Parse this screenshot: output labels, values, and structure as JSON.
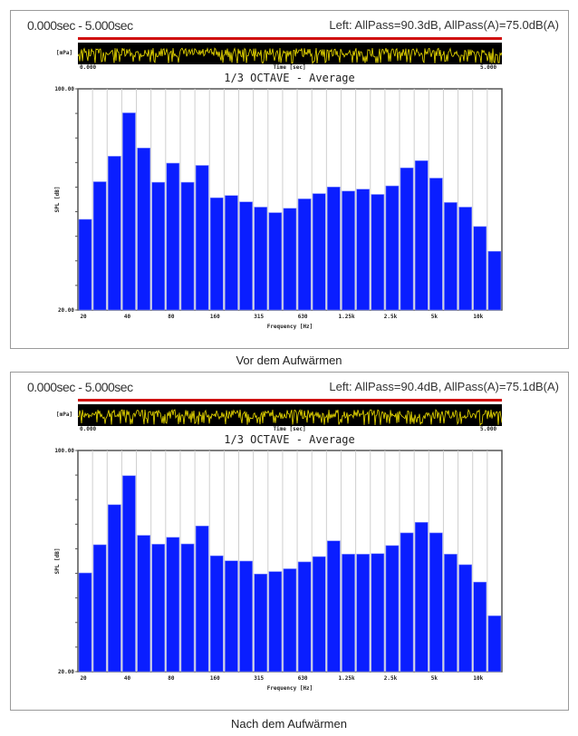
{
  "panels": [
    {
      "range": "0.000sec  -  5.000sec",
      "levels": "Left: AllPass=90.3dB, AllPass(A)=75.0dB(A)",
      "unit": "[mPa]",
      "time_start": "0.000",
      "time_end": "5.000",
      "time_label": "Time [sec]",
      "caption": "Vor dem Aufwärmen"
    },
    {
      "range": "0.000sec  -  5.000sec",
      "levels": "Left: AllPass=90.4dB, AllPass(A)=75.1dB(A)",
      "unit": "[mPa]",
      "time_start": "0.000",
      "time_end": "5.000",
      "time_label": "Time [sec]",
      "caption": "Nach dem Aufwärmen"
    }
  ],
  "colors": {
    "bar": "#0a1eff",
    "waveform": "#f0e000",
    "marker": "#d01010"
  },
  "chart_data": [
    {
      "type": "bar",
      "title": "1/3 OCTAVE - Average",
      "xlabel": "Frequency [Hz]",
      "ylabel": "SPL [dB]",
      "ylim": [
        20,
        100
      ],
      "yticks_labels": [
        "100.00",
        "20.00"
      ],
      "xtick_labels": [
        "20",
        "40",
        "80",
        "160",
        "315",
        "630",
        "1.25k",
        "2.5k",
        "5k",
        "10k"
      ],
      "categories": [
        "20",
        "25",
        "31.5",
        "40",
        "50",
        "63",
        "80",
        "100",
        "125",
        "160",
        "200",
        "250",
        "315",
        "400",
        "500",
        "630",
        "800",
        "1k",
        "1.25k",
        "1.6k",
        "2k",
        "2.5k",
        "3.15k",
        "4k",
        "5k",
        "6.3k",
        "8k",
        "10k",
        "12.5k"
      ],
      "values": [
        52.8,
        66.4,
        75.6,
        91.3,
        78.6,
        66.2,
        73.1,
        66.2,
        72.3,
        60.6,
        61.4,
        59.1,
        57.2,
        55.2,
        56.8,
        60.2,
        62.1,
        64.5,
        63.0,
        63.7,
        61.8,
        64.9,
        71.4,
        74.0,
        67.7,
        58.9,
        57.2,
        50.2,
        41.2
      ]
    },
    {
      "type": "bar",
      "title": "1/3 OCTAVE - Average",
      "xlabel": "Frequency [Hz]",
      "ylabel": "SPL [dB]",
      "ylim": [
        20,
        100
      ],
      "yticks_labels": [
        "100.00",
        "20.00"
      ],
      "xtick_labels": [
        "20",
        "40",
        "80",
        "160",
        "315",
        "630",
        "1.25k",
        "2.5k",
        "5k",
        "10k"
      ],
      "categories": [
        "20",
        "25",
        "31.5",
        "40",
        "50",
        "63",
        "80",
        "100",
        "125",
        "160",
        "200",
        "250",
        "315",
        "400",
        "500",
        "630",
        "800",
        "1k",
        "1.25k",
        "1.6k",
        "2k",
        "2.5k",
        "3.15k",
        "4k",
        "5k",
        "6.3k",
        "8k",
        "10k",
        "12.5k"
      ],
      "values": [
        55.7,
        65.9,
        80.4,
        90.9,
        69.3,
        66.1,
        68.6,
        66.2,
        72.7,
        61.9,
        60.1,
        60.0,
        55.3,
        56.2,
        57.2,
        59.7,
        61.6,
        67.3,
        62.5,
        62.5,
        62.7,
        65.6,
        70.2,
        74.0,
        70.2,
        62.5,
        58.7,
        52.4,
        40.2
      ]
    }
  ]
}
